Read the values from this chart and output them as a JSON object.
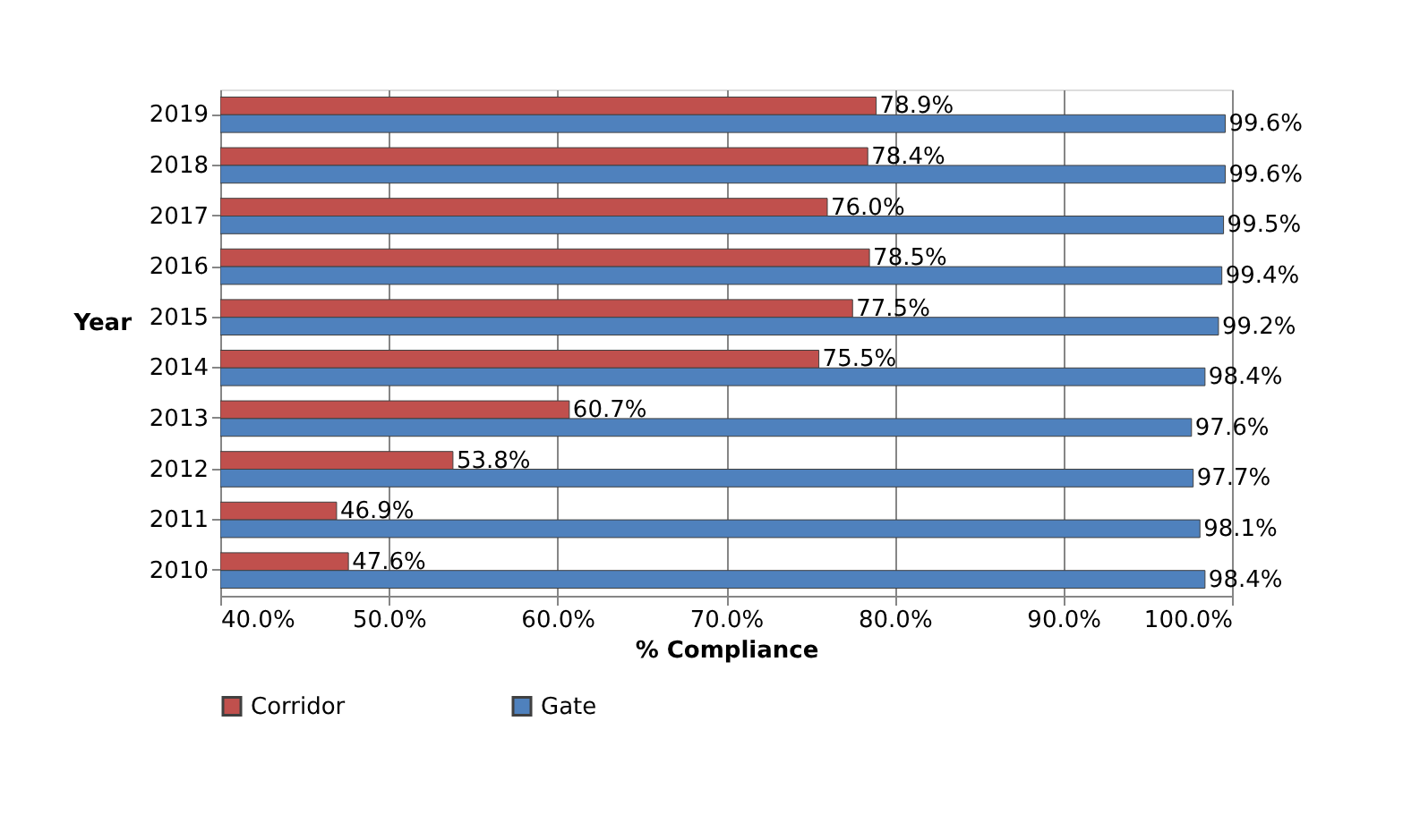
{
  "chart_data": {
    "type": "bar",
    "orientation": "horizontal",
    "xlabel": "% Compliance",
    "ylabel": "Year",
    "categories": [
      "2019",
      "2018",
      "2017",
      "2016",
      "2015",
      "2014",
      "2013",
      "2012",
      "2011",
      "2010"
    ],
    "series": [
      {
        "name": "Corridor",
        "color": "#c0504d",
        "values": [
          78.9,
          78.4,
          76.0,
          78.5,
          77.5,
          75.5,
          60.7,
          53.8,
          46.9,
          47.6
        ],
        "value_labels": [
          "78.9%",
          "78.4%",
          "76.0%",
          "78.5%",
          "77.5%",
          "75.5%",
          "60.7%",
          "53.8%",
          "46.9%",
          "47.6%"
        ]
      },
      {
        "name": "Gate",
        "color": "#4f81bd",
        "values": [
          99.6,
          99.6,
          99.5,
          99.4,
          99.2,
          98.4,
          97.6,
          97.7,
          98.1,
          98.4
        ],
        "value_labels": [
          "99.6%",
          "99.6%",
          "99.5%",
          "99.4%",
          "99.2%",
          "98.4%",
          "97.6%",
          "97.7%",
          "98.1%",
          "98.4%"
        ]
      }
    ],
    "xlim": [
      40,
      100
    ],
    "xticks": [
      {
        "value": 40,
        "label": "40.0%"
      },
      {
        "value": 50,
        "label": "50.0%"
      },
      {
        "value": 60,
        "label": "60.0%"
      },
      {
        "value": 70,
        "label": "70.0%"
      },
      {
        "value": 80,
        "label": "80.0%"
      },
      {
        "value": 90,
        "label": "90.0%"
      },
      {
        "value": 100,
        "label": "100.0%"
      }
    ],
    "grid": "x",
    "legend": "bottom"
  }
}
